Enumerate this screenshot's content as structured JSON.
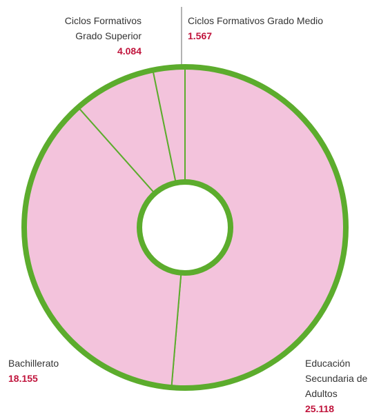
{
  "chart_data": {
    "type": "donut",
    "categories": [
      "Educación Secundaria de Adultos",
      "Bachillerato",
      "Ciclos Formativos Grado Superior",
      "Ciclos Formativos Grado Medio"
    ],
    "values": [
      25118,
      18155,
      4084,
      1567
    ],
    "value_labels": [
      "25.118",
      "18.155",
      "4.084",
      "1.567"
    ],
    "color": "#f3c3dc",
    "edge_color": "#5cac2d",
    "label_color": "#c0143c"
  }
}
